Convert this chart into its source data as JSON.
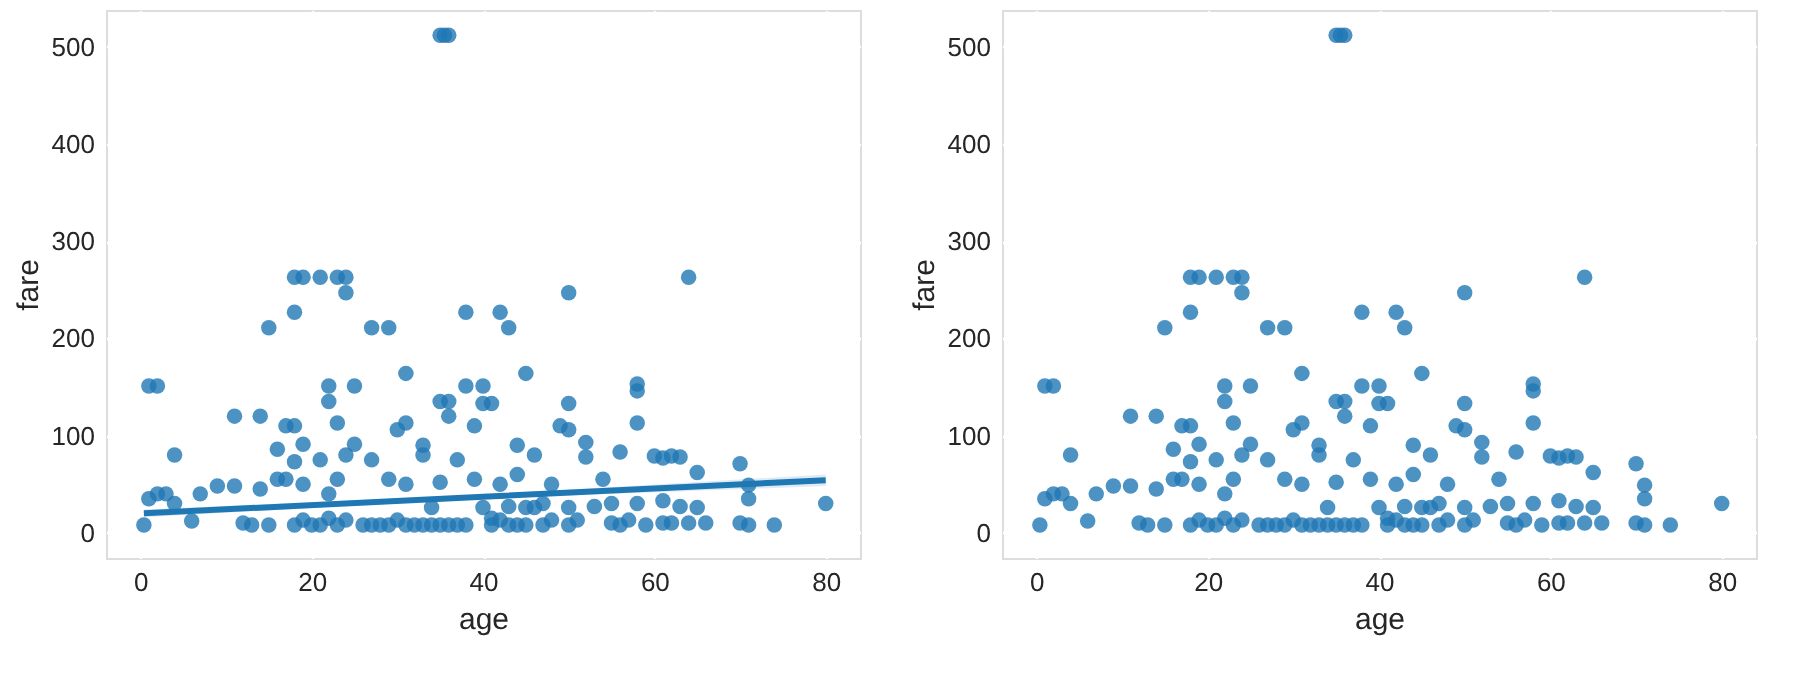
{
  "chart_data": [
    {
      "type": "scatter",
      "xlabel": "age",
      "ylabel": "fare",
      "xlim": [
        -4,
        84
      ],
      "ylim": [
        -26,
        538
      ],
      "xticks": [
        0,
        20,
        40,
        60,
        80
      ],
      "yticks": [
        0,
        100,
        200,
        300,
        400,
        500
      ],
      "grid": true,
      "marker": "circle",
      "series": [
        {
          "color": "#1f77b4",
          "x": [
            35,
            36,
            35.5,
            18,
            19,
            21,
            23,
            24,
            64,
            24,
            50,
            18,
            38,
            42,
            15,
            27,
            29,
            43,
            31,
            45,
            1,
            2,
            22,
            25,
            38,
            40,
            58,
            58,
            22,
            35,
            36,
            40,
            41,
            50,
            11,
            14,
            36,
            17,
            18,
            23,
            31,
            39,
            49,
            50,
            58,
            30,
            16,
            4,
            19,
            25,
            33,
            44,
            52,
            56,
            60,
            61,
            62,
            63,
            70,
            65,
            71,
            71,
            80,
            74,
            70,
            71,
            66,
            64,
            61,
            55,
            0.42,
            2,
            4,
            6,
            7,
            9,
            11,
            12,
            13,
            14,
            15,
            16,
            18,
            19,
            20,
            21,
            22,
            23,
            24,
            27,
            28,
            29,
            30,
            31,
            32,
            33,
            34,
            35,
            37,
            38,
            39,
            41,
            42,
            43,
            44,
            45,
            46,
            47,
            48,
            50,
            51,
            52,
            53,
            54,
            55,
            56,
            57,
            58,
            59,
            61,
            62,
            63,
            65,
            1,
            3,
            19,
            21,
            22,
            24,
            26,
            34,
            36,
            40,
            42,
            44,
            46,
            48,
            50,
            27,
            29,
            31,
            33,
            35,
            37,
            41,
            43,
            45,
            47,
            23,
            18,
            17
          ],
          "values": [
            512,
            512,
            512,
            263,
            263,
            263,
            263,
            263,
            263,
            247,
            247,
            227,
            227,
            227,
            211,
            211,
            211,
            211,
            164,
            164,
            151,
            151,
            151,
            151,
            151,
            151,
            153,
            146,
            135,
            135,
            135,
            133,
            133,
            133,
            120,
            120,
            120,
            110,
            110,
            113,
            113,
            110,
            110,
            106,
            113,
            106,
            86,
            80,
            91,
            91,
            90,
            90,
            93,
            83,
            79,
            77,
            79,
            78,
            71,
            62,
            49,
            35,
            30,
            8,
            10,
            8,
            10,
            10,
            10,
            10,
            8,
            40,
            30,
            12,
            40,
            48,
            48,
            10,
            8,
            45,
            8,
            55,
            8,
            50,
            8,
            75,
            15,
            55,
            80,
            75,
            8,
            55,
            13,
            50,
            8,
            80,
            26,
            52,
            75,
            8,
            55,
            15,
            50,
            27,
            60,
            8,
            80,
            30,
            50,
            26,
            13,
            78,
            27,
            55,
            30,
            8,
            13,
            30,
            8,
            33,
            10,
            27,
            26,
            35,
            40,
            13,
            8,
            40,
            13,
            8,
            8,
            8,
            26,
            13,
            8,
            26,
            13,
            8,
            8,
            8,
            8,
            8,
            8,
            8,
            8,
            8,
            26,
            8,
            8,
            73,
            55
          ]
        },
        {
          "type": "line",
          "marker": "none",
          "color": "#1f77b4",
          "x": [
            0.42,
            40,
            80
          ],
          "values": [
            20,
            37,
            54
          ],
          "lower": [
            16,
            35,
            48
          ],
          "upper": [
            24,
            39,
            60
          ]
        }
      ]
    },
    {
      "type": "scatter",
      "xlabel": "age",
      "ylabel": "fare",
      "xlim": [
        -4,
        84
      ],
      "ylim": [
        -26,
        538
      ],
      "xticks": [
        0,
        20,
        40,
        60,
        80
      ],
      "yticks": [
        0,
        100,
        200,
        300,
        400,
        500
      ],
      "grid": true,
      "marker": "circle",
      "series": [
        {
          "color": "#1f77b4",
          "x": [
            35,
            36,
            35.5,
            18,
            19,
            21,
            23,
            24,
            64,
            24,
            50,
            18,
            38,
            42,
            15,
            27,
            29,
            43,
            31,
            45,
            1,
            2,
            22,
            25,
            38,
            40,
            58,
            58,
            22,
            35,
            36,
            40,
            41,
            50,
            11,
            14,
            36,
            17,
            18,
            23,
            31,
            39,
            49,
            50,
            58,
            30,
            16,
            4,
            19,
            25,
            33,
            44,
            52,
            56,
            60,
            61,
            62,
            63,
            70,
            65,
            71,
            71,
            80,
            74,
            70,
            71,
            66,
            64,
            61,
            55,
            0.42,
            2,
            4,
            6,
            7,
            9,
            11,
            12,
            13,
            14,
            15,
            16,
            18,
            19,
            20,
            21,
            22,
            23,
            24,
            27,
            28,
            29,
            30,
            31,
            32,
            33,
            34,
            35,
            37,
            38,
            39,
            41,
            42,
            43,
            44,
            45,
            46,
            47,
            48,
            50,
            51,
            52,
            53,
            54,
            55,
            56,
            57,
            58,
            59,
            61,
            62,
            63,
            65,
            1,
            3,
            19,
            21,
            22,
            24,
            26,
            34,
            36,
            40,
            42,
            44,
            46,
            48,
            50,
            27,
            29,
            31,
            33,
            35,
            37,
            41,
            43,
            45,
            47,
            23,
            18,
            17
          ],
          "values": [
            512,
            512,
            512,
            263,
            263,
            263,
            263,
            263,
            263,
            247,
            247,
            227,
            227,
            227,
            211,
            211,
            211,
            211,
            164,
            164,
            151,
            151,
            151,
            151,
            151,
            151,
            153,
            146,
            135,
            135,
            135,
            133,
            133,
            133,
            120,
            120,
            120,
            110,
            110,
            113,
            113,
            110,
            110,
            106,
            113,
            106,
            86,
            80,
            91,
            91,
            90,
            90,
            93,
            83,
            79,
            77,
            79,
            78,
            71,
            62,
            49,
            35,
            30,
            8,
            10,
            8,
            10,
            10,
            10,
            10,
            8,
            40,
            30,
            12,
            40,
            48,
            48,
            10,
            8,
            45,
            8,
            55,
            8,
            50,
            8,
            75,
            15,
            55,
            80,
            75,
            8,
            55,
            13,
            50,
            8,
            80,
            26,
            52,
            75,
            8,
            55,
            15,
            50,
            27,
            60,
            8,
            80,
            30,
            50,
            26,
            13,
            78,
            27,
            55,
            30,
            8,
            13,
            30,
            8,
            33,
            10,
            27,
            26,
            35,
            40,
            13,
            8,
            40,
            13,
            8,
            8,
            8,
            26,
            13,
            8,
            26,
            13,
            8,
            8,
            8,
            8,
            8,
            8,
            8,
            8,
            8,
            26,
            8,
            8,
            73,
            55
          ]
        }
      ]
    }
  ]
}
